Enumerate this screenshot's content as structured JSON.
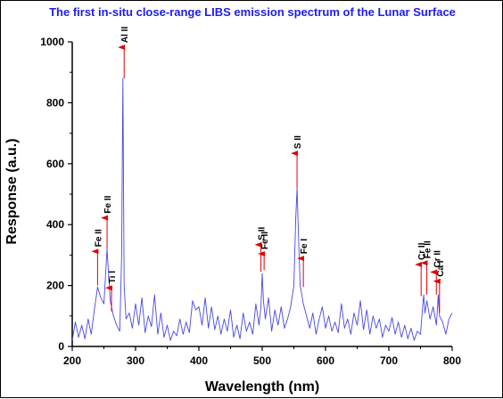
{
  "chart_data": {
    "type": "line",
    "title": "The first in-situ close-range LIBS emission spectrum of the Lunar Surface",
    "xlabel": "Wavelength (nm)",
    "ylabel": "Response (a.u.)",
    "xlim": [
      200,
      800
    ],
    "ylim": [
      0,
      1000
    ],
    "x_ticks": [
      200,
      300,
      400,
      500,
      600,
      700,
      800
    ],
    "y_ticks": [
      0,
      200,
      400,
      600,
      800,
      1000
    ],
    "colors": {
      "series": "#4848e0",
      "arrow": "#e00000",
      "title": "#1d1df0"
    },
    "grid": false,
    "series": [
      {
        "x": [
          200,
          205,
          210,
          215,
          220,
          225,
          230,
          235,
          240,
          245,
          250,
          255,
          260,
          265,
          270,
          275,
          278,
          280,
          282,
          285,
          290,
          295,
          300,
          305,
          310,
          315,
          320,
          325,
          330,
          335,
          340,
          345,
          350,
          355,
          360,
          365,
          370,
          375,
          380,
          385,
          390,
          395,
          400,
          405,
          410,
          415,
          420,
          425,
          430,
          435,
          440,
          445,
          450,
          455,
          460,
          465,
          470,
          475,
          480,
          485,
          490,
          495,
          498,
          500,
          502,
          505,
          510,
          515,
          520,
          525,
          530,
          535,
          540,
          545,
          550,
          553,
          555,
          557,
          560,
          565,
          570,
          575,
          580,
          585,
          590,
          595,
          600,
          605,
          610,
          615,
          620,
          625,
          630,
          635,
          640,
          645,
          650,
          655,
          660,
          665,
          670,
          675,
          680,
          685,
          690,
          695,
          700,
          705,
          710,
          715,
          720,
          725,
          730,
          735,
          740,
          745,
          750,
          753,
          755,
          757,
          760,
          765,
          770,
          775,
          778,
          780,
          785,
          790,
          795,
          800
        ],
        "values": [
          20,
          80,
          30,
          70,
          25,
          90,
          40,
          120,
          195,
          160,
          140,
          320,
          150,
          100,
          70,
          50,
          300,
          880,
          200,
          90,
          110,
          60,
          140,
          70,
          160,
          45,
          100,
          65,
          170,
          40,
          110,
          30,
          70,
          20,
          50,
          35,
          90,
          40,
          80,
          45,
          150,
          120,
          130,
          70,
          160,
          60,
          130,
          55,
          100,
          40,
          90,
          50,
          120,
          30,
          70,
          25,
          110,
          50,
          80,
          40,
          140,
          70,
          130,
          240,
          150,
          90,
          160,
          50,
          120,
          70,
          130,
          60,
          90,
          130,
          200,
          420,
          520,
          380,
          200,
          140,
          100,
          60,
          110,
          40,
          90,
          130,
          60,
          100,
          50,
          80,
          45,
          140,
          60,
          90,
          40,
          110,
          70,
          150,
          55,
          120,
          40,
          100,
          60,
          90,
          30,
          70,
          50,
          95,
          40,
          80,
          30,
          70,
          25,
          60,
          20,
          50,
          40,
          120,
          170,
          110,
          150,
          90,
          130,
          70,
          170,
          100,
          80,
          40,
          90,
          110
        ]
      }
    ],
    "annotations": [
      {
        "label": "Fe II",
        "x": 240,
        "base": 200,
        "tip": 318
      },
      {
        "label": "Fe II",
        "x": 255,
        "base": 320,
        "tip": 428
      },
      {
        "label": "Ti I",
        "x": 262,
        "base": 115,
        "tip": 198
      },
      {
        "label": "Al II",
        "x": 282,
        "base": 880,
        "tip": 988
      },
      {
        "label": "S II",
        "x": 498,
        "base": 245,
        "tip": 340
      },
      {
        "label": "Fe II",
        "x": 503,
        "base": 250,
        "tip": 310
      },
      {
        "label": "S II",
        "x": 555,
        "base": 520,
        "tip": 640
      },
      {
        "label": "Fe I",
        "x": 565,
        "base": 195,
        "tip": 295
      },
      {
        "label": "Cr II",
        "x": 751,
        "base": 165,
        "tip": 275
      },
      {
        "label": "Fe II",
        "x": 760,
        "base": 170,
        "tip": 280
      },
      {
        "label": "Cr II",
        "x": 775,
        "base": 170,
        "tip": 250
      },
      {
        "label": "Ca I",
        "x": 780,
        "base": 110,
        "tip": 220
      }
    ]
  }
}
